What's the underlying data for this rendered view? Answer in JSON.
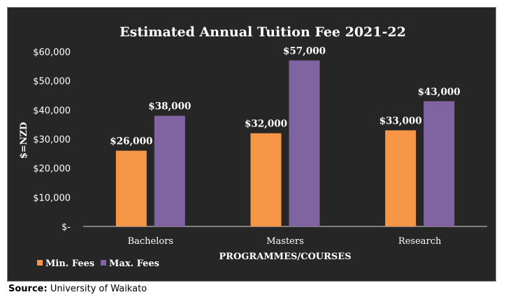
{
  "chart_data": {
    "type": "bar",
    "title": "Estimated Annual Tuition Fee 2021-22",
    "xlabel": "PROGRAMMES/COURSES",
    "ylabel": "$=NZD",
    "categories": [
      "Bachelors",
      "Masters",
      "Research"
    ],
    "series": [
      {
        "name": "Min. Fees",
        "color": "#f79646",
        "values": [
          26000,
          32000,
          33000
        ],
        "labels": [
          "$26,000",
          "$32,000",
          "$33,000"
        ]
      },
      {
        "name": "Max. Fees",
        "color": "#8064a2",
        "values": [
          38000,
          57000,
          43000
        ],
        "labels": [
          "$38,000",
          "$57,000",
          "$43,000"
        ]
      }
    ],
    "ylim": [
      0,
      60000
    ],
    "yticks": [
      0,
      10000,
      20000,
      30000,
      40000,
      50000,
      60000
    ],
    "ytick_labels": [
      "$-",
      "$10,000",
      "$20,000",
      "$30,000",
      "$40,000",
      "$50,000",
      "$60,000"
    ],
    "grid": false,
    "legend_position": "bottom-left",
    "background": "#262626"
  },
  "source": {
    "label": "Source:",
    "text": "University of Waikato"
  }
}
